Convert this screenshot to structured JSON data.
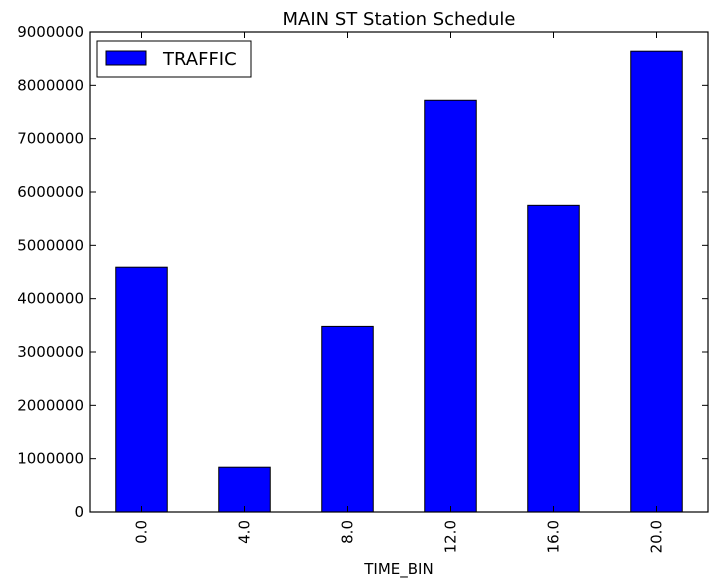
{
  "chart_data": {
    "type": "bar",
    "title": "MAIN ST Station Schedule",
    "xlabel": "TIME_BIN",
    "ylabel": "",
    "categories": [
      "0.0",
      "4.0",
      "8.0",
      "12.0",
      "16.0",
      "20.0"
    ],
    "series": [
      {
        "name": "TRAFFIC",
        "values": [
          4590000,
          840000,
          3480000,
          7720000,
          5750000,
          8640000
        ]
      }
    ],
    "ylim": [
      0,
      9000000
    ],
    "yticks": [
      0,
      1000000,
      2000000,
      3000000,
      4000000,
      5000000,
      6000000,
      7000000,
      8000000,
      9000000
    ],
    "ytick_labels": [
      "0",
      "1000000",
      "2000000",
      "3000000",
      "4000000",
      "5000000",
      "6000000",
      "7000000",
      "8000000",
      "9000000"
    ],
    "grid": false,
    "legend_position": "top-left",
    "colors": {
      "bar_fill": "#0000ff",
      "bar_edge": "#000000",
      "axis": "#000000",
      "background": "#ffffff"
    }
  }
}
